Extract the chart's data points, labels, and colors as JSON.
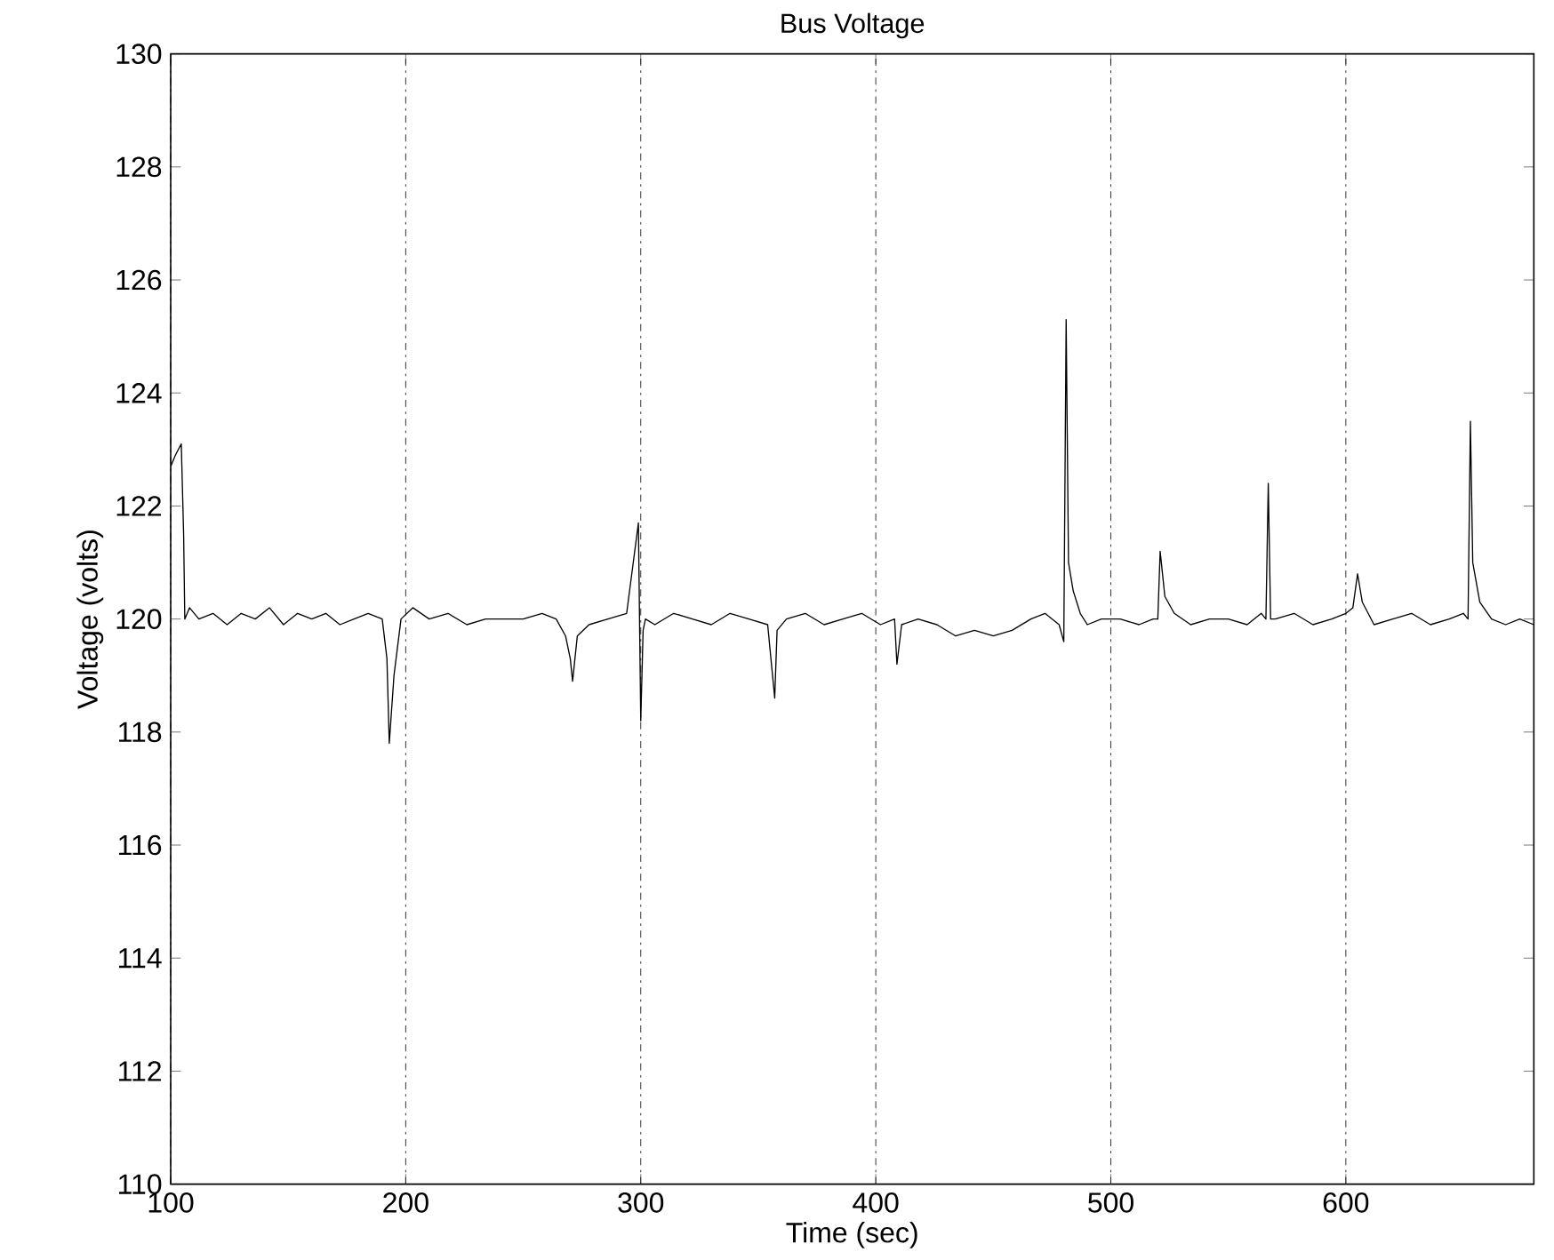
{
  "chart_data": {
    "type": "line",
    "title": "Bus Voltage",
    "xlabel": "Time (sec)",
    "ylabel": "Voltage (volts)",
    "xlim": [
      100,
      680
    ],
    "ylim": [
      110,
      130
    ],
    "xticks": [
      100,
      200,
      300,
      400,
      500,
      600
    ],
    "yticks": [
      110,
      112,
      114,
      116,
      118,
      120,
      122,
      124,
      126,
      128,
      130
    ],
    "grid": "x",
    "series": [
      {
        "color": "#000000",
        "x": [
          100,
          102,
          104.5,
          105.5,
          106,
          108,
          112,
          118,
          124,
          130,
          136,
          142,
          148,
          154,
          160,
          166,
          172,
          178,
          184,
          190,
          192,
          193,
          195,
          198,
          203,
          210,
          218,
          226,
          234,
          242,
          250,
          258,
          264,
          268,
          270,
          271,
          273,
          278,
          286,
          294,
          299,
          300,
          301,
          302,
          306,
          314,
          322,
          330,
          338,
          346,
          354,
          357,
          358,
          362,
          370,
          378,
          386,
          394,
          402,
          408,
          409,
          411,
          418,
          426,
          434,
          442,
          450,
          458,
          466,
          472,
          478,
          480,
          481,
          482,
          484,
          487,
          490,
          496,
          504,
          512,
          518,
          520,
          521,
          523,
          527,
          534,
          542,
          550,
          558,
          564,
          566,
          567,
          568,
          570,
          578,
          586,
          594,
          600,
          603,
          605,
          607,
          612,
          620,
          628,
          636,
          644,
          650,
          652,
          653,
          654,
          657,
          662,
          668,
          674,
          680
        ],
        "values": [
          122.7,
          122.9,
          123.1,
          121.5,
          120.0,
          120.2,
          120.0,
          120.1,
          119.9,
          120.1,
          120.0,
          120.2,
          119.9,
          120.1,
          120.0,
          120.1,
          119.9,
          120.0,
          120.1,
          120.0,
          119.3,
          117.8,
          119.0,
          120.0,
          120.2,
          120.0,
          120.1,
          119.9,
          120.0,
          120.0,
          120.0,
          120.1,
          120.0,
          119.7,
          119.3,
          118.9,
          119.7,
          119.9,
          120.0,
          120.1,
          121.7,
          118.2,
          119.8,
          120.0,
          119.9,
          120.1,
          120.0,
          119.9,
          120.1,
          120.0,
          119.9,
          118.6,
          119.8,
          120.0,
          120.1,
          119.9,
          120.0,
          120.1,
          119.9,
          120.0,
          119.2,
          119.9,
          120.0,
          119.9,
          119.7,
          119.8,
          119.7,
          119.8,
          120.0,
          120.1,
          119.9,
          119.6,
          125.3,
          121.0,
          120.5,
          120.1,
          119.9,
          120.0,
          120.0,
          119.9,
          120.0,
          120.0,
          121.2,
          120.4,
          120.1,
          119.9,
          120.0,
          120.0,
          119.9,
          120.1,
          120.0,
          122.4,
          120.0,
          120.0,
          120.1,
          119.9,
          120.0,
          120.1,
          120.2,
          120.8,
          120.3,
          119.9,
          120.0,
          120.1,
          119.9,
          120.0,
          120.1,
          120.0,
          123.5,
          121.0,
          120.3,
          120.0,
          119.9,
          120.0,
          119.9
        ]
      }
    ]
  }
}
